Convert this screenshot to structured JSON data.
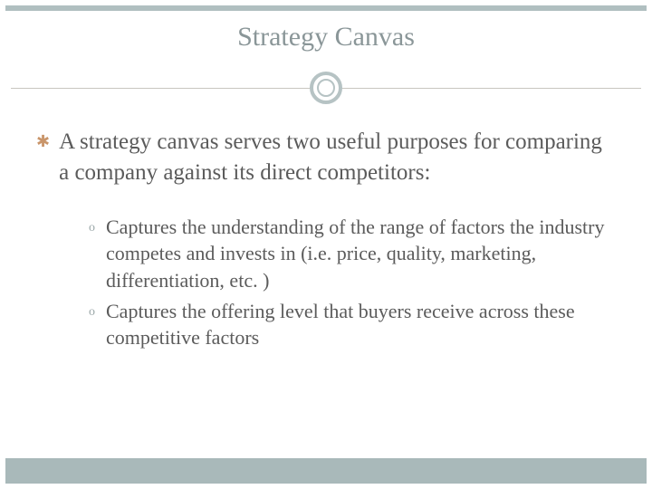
{
  "slide": {
    "title": "Strategy Canvas",
    "main_bullet": "A strategy canvas serves two useful purposes for comparing a company against its direct competitors:",
    "sub_items": [
      "Captures the understanding of the range of factors the industry competes and invests in (i.e. price, quality, marketing, differentiation, etc. )",
      "Captures the offering level that buyers receive across these competitive factors"
    ]
  },
  "style": {
    "background_color": "#ffffff",
    "frame_color": "#a9b9ba",
    "title_color": "#8a9698",
    "title_fontsize": 30,
    "body_color": "#5b5b5b",
    "main_fontsize": 25,
    "sub_fontsize": 22,
    "bullet_star_color": "#c9956a",
    "sub_marker_color": "#9aa7a8",
    "divider_line_color": "#c8c6bf",
    "circle_border_color": "#b6c3c4",
    "font_family": "Georgia, serif"
  }
}
